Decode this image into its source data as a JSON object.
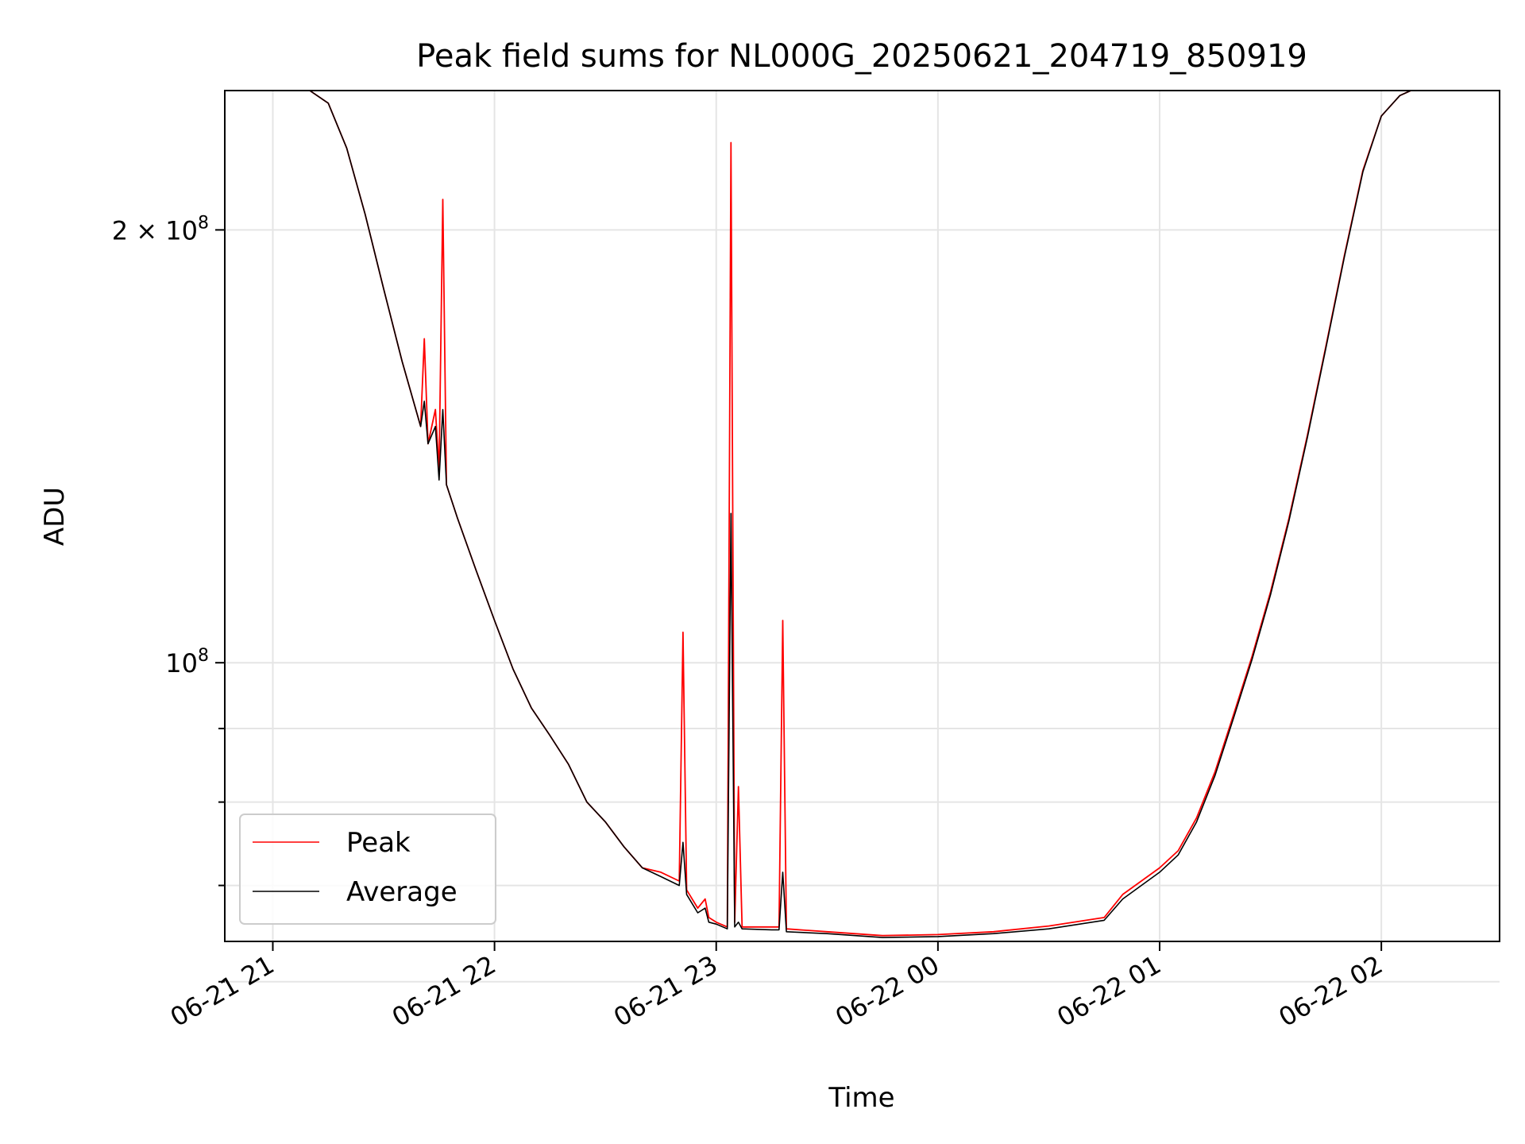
{
  "chart_data": {
    "type": "line",
    "title": "Peak field sums for NL000G_20250621_204719_850919",
    "xlabel": "Time",
    "ylabel": "ADU",
    "x_ticks": [
      "06-21 21",
      "06-21 22",
      "06-21 23",
      "06-22 00",
      "06-22 01",
      "06-22 02"
    ],
    "y_major_ticks": [
      {
        "value": 100000000,
        "mantissa": "10",
        "exponent": "8"
      },
      {
        "value": 200000000,
        "mantissa": "2 × 10",
        "exponent": "8"
      }
    ],
    "y_minor_ticks": [
      60000000,
      70000000,
      80000000,
      90000000
    ],
    "xlim": [
      "2025-06-21 20:47",
      "2025-06-22 02:32"
    ],
    "ylim": [
      64000000,
      250000000
    ],
    "yscale": "log",
    "grid": true,
    "legend_position": "lower-left",
    "series": [
      {
        "name": "Peak",
        "color": "#ff0000",
        "points": [
          [
            "20:47",
            250000000
          ],
          [
            "21:10",
            250000000
          ],
          [
            "21:15",
            245000000
          ],
          [
            "21:20",
            228000000
          ],
          [
            "21:25",
            205000000
          ],
          [
            "21:30",
            182000000
          ],
          [
            "21:35",
            162000000
          ],
          [
            "21:40",
            146000000
          ],
          [
            "21:41",
            168000000
          ],
          [
            "21:42",
            142000000
          ],
          [
            "21:44",
            150000000
          ],
          [
            "21:45",
            136000000
          ],
          [
            "21:46",
            210000000
          ],
          [
            "21:47",
            133000000
          ],
          [
            "21:50",
            126000000
          ],
          [
            "21:55",
            116000000
          ],
          [
            "22:00",
            107000000
          ],
          [
            "22:05",
            99000000
          ],
          [
            "22:10",
            93000000
          ],
          [
            "22:15",
            89000000
          ],
          [
            "22:20",
            85000000
          ],
          [
            "22:25",
            80000000
          ],
          [
            "22:30",
            77500000
          ],
          [
            "22:35",
            74500000
          ],
          [
            "22:40",
            72000000
          ],
          [
            "22:45",
            71500000
          ],
          [
            "22:50",
            70500000
          ],
          [
            "22:51",
            105000000
          ],
          [
            "22:52",
            69500000
          ],
          [
            "22:55",
            67500000
          ],
          [
            "22:57",
            68500000
          ],
          [
            "22:58",
            66500000
          ],
          [
            "23:00",
            66000000
          ],
          [
            "23:03",
            65500000
          ],
          [
            "23:04",
            230000000
          ],
          [
            "23:05",
            66000000
          ],
          [
            "23:06",
            82000000
          ],
          [
            "23:07",
            65500000
          ],
          [
            "23:15",
            65500000
          ],
          [
            "23:17",
            65500000
          ],
          [
            "23:18",
            107000000
          ],
          [
            "23:19",
            65300000
          ],
          [
            "23:30",
            65000000
          ],
          [
            "23:45",
            64600000
          ],
          [
            "00:00",
            64700000
          ],
          [
            "00:15",
            65000000
          ],
          [
            "00:30",
            65600000
          ],
          [
            "00:45",
            66500000
          ],
          [
            "00:50",
            69000000
          ],
          [
            "01:00",
            72000000
          ],
          [
            "01:05",
            74000000
          ],
          [
            "01:10",
            78000000
          ],
          [
            "01:15",
            84000000
          ],
          [
            "01:20",
            92000000
          ],
          [
            "01:25",
            101000000
          ],
          [
            "01:30",
            112000000
          ],
          [
            "01:35",
            126000000
          ],
          [
            "01:40",
            144000000
          ],
          [
            "01:45",
            166000000
          ],
          [
            "01:50",
            192000000
          ],
          [
            "01:55",
            220000000
          ],
          [
            "02:00",
            240000000
          ],
          [
            "02:05",
            248000000
          ],
          [
            "02:08",
            250000000
          ],
          [
            "02:32",
            250000000
          ]
        ]
      },
      {
        "name": "Average",
        "color": "#000000",
        "points": [
          [
            "20:47",
            250000000
          ],
          [
            "21:10",
            250000000
          ],
          [
            "21:15",
            245000000
          ],
          [
            "21:20",
            228000000
          ],
          [
            "21:25",
            205000000
          ],
          [
            "21:30",
            182000000
          ],
          [
            "21:35",
            162000000
          ],
          [
            "21:40",
            146000000
          ],
          [
            "21:41",
            152000000
          ],
          [
            "21:42",
            142000000
          ],
          [
            "21:44",
            146000000
          ],
          [
            "21:45",
            134000000
          ],
          [
            "21:46",
            150000000
          ],
          [
            "21:47",
            133000000
          ],
          [
            "21:50",
            126000000
          ],
          [
            "21:55",
            116000000
          ],
          [
            "22:00",
            107000000
          ],
          [
            "22:05",
            99000000
          ],
          [
            "22:10",
            93000000
          ],
          [
            "22:15",
            89000000
          ],
          [
            "22:20",
            85000000
          ],
          [
            "22:25",
            80000000
          ],
          [
            "22:30",
            77500000
          ],
          [
            "22:35",
            74500000
          ],
          [
            "22:40",
            72000000
          ],
          [
            "22:45",
            71000000
          ],
          [
            "22:50",
            70000000
          ],
          [
            "22:51",
            75000000
          ],
          [
            "22:52",
            69000000
          ],
          [
            "22:55",
            67000000
          ],
          [
            "22:57",
            67500000
          ],
          [
            "22:58",
            66000000
          ],
          [
            "23:00",
            65800000
          ],
          [
            "23:03",
            65300000
          ],
          [
            "23:04",
            127000000
          ],
          [
            "23:05",
            65500000
          ],
          [
            "23:06",
            66000000
          ],
          [
            "23:07",
            65300000
          ],
          [
            "23:15",
            65200000
          ],
          [
            "23:17",
            65200000
          ],
          [
            "23:18",
            71500000
          ],
          [
            "23:19",
            65000000
          ],
          [
            "23:30",
            64800000
          ],
          [
            "23:45",
            64400000
          ],
          [
            "00:00",
            64500000
          ],
          [
            "00:15",
            64800000
          ],
          [
            "00:30",
            65300000
          ],
          [
            "00:45",
            66200000
          ],
          [
            "00:50",
            68500000
          ],
          [
            "01:00",
            71500000
          ],
          [
            "01:05",
            73500000
          ],
          [
            "01:10",
            77500000
          ],
          [
            "01:15",
            83500000
          ],
          [
            "01:20",
            91500000
          ],
          [
            "01:25",
            100500000
          ],
          [
            "01:30",
            111500000
          ],
          [
            "01:35",
            125500000
          ],
          [
            "01:40",
            143500000
          ],
          [
            "01:45",
            165500000
          ],
          [
            "01:50",
            191500000
          ],
          [
            "01:55",
            219500000
          ],
          [
            "02:00",
            240000000
          ],
          [
            "02:05",
            248000000
          ],
          [
            "02:08",
            250000000
          ],
          [
            "02:32",
            250000000
          ]
        ]
      }
    ]
  }
}
